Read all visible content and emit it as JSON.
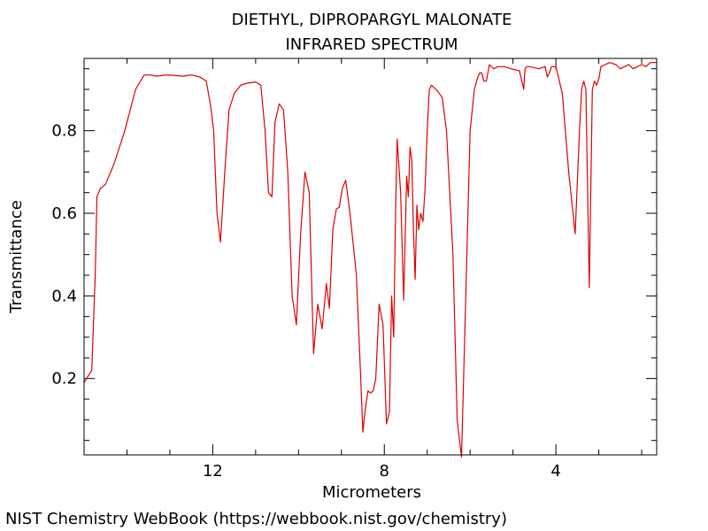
{
  "chart_data": {
    "type": "line",
    "title": "DIETHYL, DIPROPARGYL MALONATE",
    "subtitle": "INFRARED SPECTRUM",
    "xlabel": "Micrometers",
    "ylabel": "Transmittance",
    "xlim": [
      15.0,
      1.65
    ],
    "ylim": [
      0.015,
      0.975
    ],
    "x_ticks": [
      12,
      8,
      4
    ],
    "y_ticks": [
      0.2,
      0.4,
      0.6,
      0.8
    ],
    "grid": false,
    "line_color": "#dd0000",
    "series": [
      {
        "x": [
          15.0,
          14.82,
          14.74,
          14.7,
          14.62,
          14.5,
          14.3,
          14.05,
          13.8,
          13.6,
          13.45,
          13.3,
          13.1,
          12.9,
          12.7,
          12.5,
          12.3,
          12.15,
          12.05,
          11.98,
          11.9,
          11.82,
          11.72,
          11.62,
          11.5,
          11.35,
          11.2,
          11.0,
          10.88,
          10.78,
          10.7,
          10.62,
          10.55,
          10.45,
          10.35,
          10.25,
          10.15,
          10.05,
          9.95,
          9.85,
          9.75,
          9.65,
          9.55,
          9.45,
          9.35,
          9.28,
          9.2,
          9.12,
          9.05,
          8.98,
          8.9,
          8.8,
          8.65,
          8.55,
          8.5,
          8.45,
          8.38,
          8.32,
          8.26,
          8.2,
          8.12,
          8.03,
          7.95,
          7.88,
          7.83,
          7.78,
          7.74,
          7.7,
          7.62,
          7.55,
          7.48,
          7.44,
          7.4,
          7.36,
          7.32,
          7.28,
          7.24,
          7.2,
          7.15,
          7.1,
          7.05,
          7.0,
          6.95,
          6.9,
          6.85,
          6.8,
          6.75,
          6.65,
          6.55,
          6.4,
          6.3,
          6.2,
          6.1,
          6.0,
          5.9,
          5.82,
          5.77,
          5.73,
          5.68,
          5.62,
          5.55,
          5.45,
          5.35,
          5.2,
          5.05,
          4.85,
          4.75,
          4.72,
          4.68,
          4.6,
          4.4,
          4.25,
          4.2,
          4.15,
          4.1,
          4.0,
          3.85,
          3.7,
          3.55,
          3.45,
          3.4,
          3.35,
          3.3,
          3.22,
          3.15,
          3.1,
          3.05,
          3.0,
          2.95,
          2.85,
          2.75,
          2.6,
          2.5,
          2.4,
          2.3,
          2.2,
          2.1,
          2.0,
          1.9,
          1.8,
          1.65
        ],
        "y": [
          0.19,
          0.22,
          0.45,
          0.64,
          0.66,
          0.67,
          0.72,
          0.8,
          0.9,
          0.935,
          0.935,
          0.932,
          0.935,
          0.934,
          0.932,
          0.935,
          0.93,
          0.92,
          0.86,
          0.8,
          0.6,
          0.53,
          0.7,
          0.85,
          0.89,
          0.91,
          0.915,
          0.918,
          0.91,
          0.8,
          0.65,
          0.64,
          0.82,
          0.865,
          0.85,
          0.7,
          0.4,
          0.33,
          0.55,
          0.7,
          0.65,
          0.26,
          0.38,
          0.32,
          0.43,
          0.37,
          0.56,
          0.61,
          0.615,
          0.66,
          0.68,
          0.6,
          0.45,
          0.2,
          0.07,
          0.12,
          0.17,
          0.165,
          0.17,
          0.2,
          0.38,
          0.33,
          0.09,
          0.12,
          0.4,
          0.3,
          0.6,
          0.78,
          0.65,
          0.39,
          0.69,
          0.64,
          0.76,
          0.73,
          0.56,
          0.44,
          0.62,
          0.56,
          0.6,
          0.58,
          0.66,
          0.8,
          0.9,
          0.91,
          0.905,
          0.9,
          0.895,
          0.88,
          0.8,
          0.5,
          0.1,
          0.01,
          0.4,
          0.8,
          0.9,
          0.93,
          0.94,
          0.94,
          0.92,
          0.92,
          0.96,
          0.95,
          0.955,
          0.955,
          0.95,
          0.945,
          0.9,
          0.95,
          0.955,
          0.955,
          0.95,
          0.955,
          0.93,
          0.94,
          0.955,
          0.955,
          0.89,
          0.7,
          0.55,
          0.8,
          0.9,
          0.92,
          0.9,
          0.42,
          0.9,
          0.92,
          0.91,
          0.925,
          0.955,
          0.96,
          0.965,
          0.96,
          0.95,
          0.955,
          0.96,
          0.95,
          0.955,
          0.96,
          0.955,
          0.965,
          0.965
        ]
      }
    ]
  },
  "footer": "NIST Chemistry WebBook (https://webbook.nist.gov/chemistry)"
}
